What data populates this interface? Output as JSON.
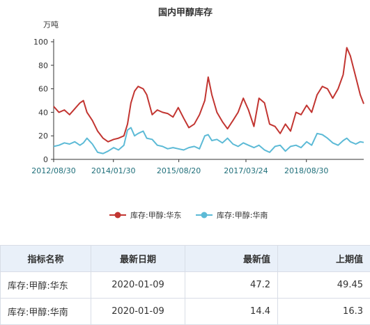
{
  "chart_data": {
    "type": "line",
    "title": "国内甲醇库存",
    "ylabel": "万吨",
    "ylim": [
      0,
      100
    ],
    "yticks": [
      0,
      20,
      40,
      60,
      80,
      100
    ],
    "x_start": "2012/08/30",
    "x_end": "2020/01/09",
    "xticks": [
      "2012/08/30",
      "2014/01/30",
      "2015/08/20",
      "2017/03/24",
      "2018/08/30"
    ],
    "grid": false,
    "legend_position": "bottom",
    "colors": {
      "east": "#c23531",
      "south": "#5cbad6"
    },
    "series": [
      {
        "name": "库存:甲醇:华东",
        "color": "#c23531",
        "points": [
          [
            "2012/08/30",
            45
          ],
          [
            "2012/10/15",
            40
          ],
          [
            "2012/12/01",
            42
          ],
          [
            "2013/01/15",
            38
          ],
          [
            "2013/03/01",
            43
          ],
          [
            "2013/04/15",
            48
          ],
          [
            "2013/05/15",
            50
          ],
          [
            "2013/06/15",
            40
          ],
          [
            "2013/08/01",
            33
          ],
          [
            "2013/09/15",
            24
          ],
          [
            "2013/11/01",
            18
          ],
          [
            "2013/12/15",
            15
          ],
          [
            "2014/02/01",
            17
          ],
          [
            "2014/03/15",
            18
          ],
          [
            "2014/05/01",
            20
          ],
          [
            "2014/06/01",
            30
          ],
          [
            "2014/07/01",
            48
          ],
          [
            "2014/08/01",
            58
          ],
          [
            "2014/09/01",
            62
          ],
          [
            "2014/10/15",
            60
          ],
          [
            "2014/11/15",
            55
          ],
          [
            "2015/01/01",
            38
          ],
          [
            "2015/02/15",
            42
          ],
          [
            "2015/04/01",
            40
          ],
          [
            "2015/05/15",
            39
          ],
          [
            "2015/07/01",
            36
          ],
          [
            "2015/08/15",
            44
          ],
          [
            "2015/10/01",
            35
          ],
          [
            "2015/11/15",
            27
          ],
          [
            "2016/01/01",
            30
          ],
          [
            "2016/02/15",
            38
          ],
          [
            "2016/04/01",
            50
          ],
          [
            "2016/05/01",
            70
          ],
          [
            "2016/06/01",
            55
          ],
          [
            "2016/07/15",
            40
          ],
          [
            "2016/09/01",
            32
          ],
          [
            "2016/10/15",
            26
          ],
          [
            "2016/12/01",
            33
          ],
          [
            "2017/01/15",
            40
          ],
          [
            "2017/03/01",
            52
          ],
          [
            "2017/04/15",
            42
          ],
          [
            "2017/06/01",
            28
          ],
          [
            "2017/07/15",
            52
          ],
          [
            "2017/09/01",
            48
          ],
          [
            "2017/10/15",
            30
          ],
          [
            "2017/12/01",
            28
          ],
          [
            "2018/01/15",
            22
          ],
          [
            "2018/03/01",
            30
          ],
          [
            "2018/04/15",
            24
          ],
          [
            "2018/06/01",
            40
          ],
          [
            "2018/07/15",
            38
          ],
          [
            "2018/09/01",
            46
          ],
          [
            "2018/10/15",
            40
          ],
          [
            "2018/12/01",
            55
          ],
          [
            "2019/01/15",
            62
          ],
          [
            "2019/03/01",
            60
          ],
          [
            "2019/04/15",
            52
          ],
          [
            "2019/06/01",
            60
          ],
          [
            "2019/07/15",
            72
          ],
          [
            "2019/08/15",
            95
          ],
          [
            "2019/09/15",
            88
          ],
          [
            "2019/11/01",
            70
          ],
          [
            "2019/12/10",
            55
          ],
          [
            "2020/01/09",
            47.2
          ]
        ]
      },
      {
        "name": "库存:甲醇:华南",
        "color": "#5cbad6",
        "points": [
          [
            "2012/08/30",
            11
          ],
          [
            "2012/10/15",
            12
          ],
          [
            "2012/12/01",
            14
          ],
          [
            "2013/01/15",
            13
          ],
          [
            "2013/03/01",
            15
          ],
          [
            "2013/04/15",
            12
          ],
          [
            "2013/05/15",
            14
          ],
          [
            "2013/06/15",
            18
          ],
          [
            "2013/08/01",
            13
          ],
          [
            "2013/09/15",
            6
          ],
          [
            "2013/11/01",
            5
          ],
          [
            "2013/12/15",
            7
          ],
          [
            "2014/02/01",
            10
          ],
          [
            "2014/03/15",
            8
          ],
          [
            "2014/05/01",
            12
          ],
          [
            "2014/06/01",
            25
          ],
          [
            "2014/07/01",
            27
          ],
          [
            "2014/08/01",
            20
          ],
          [
            "2014/09/01",
            22
          ],
          [
            "2014/10/15",
            24
          ],
          [
            "2014/11/15",
            18
          ],
          [
            "2015/01/01",
            17
          ],
          [
            "2015/02/15",
            12
          ],
          [
            "2015/04/01",
            11
          ],
          [
            "2015/05/15",
            9
          ],
          [
            "2015/07/01",
            10
          ],
          [
            "2015/08/15",
            9
          ],
          [
            "2015/10/01",
            8
          ],
          [
            "2015/11/15",
            10
          ],
          [
            "2016/01/01",
            11
          ],
          [
            "2016/02/15",
            9
          ],
          [
            "2016/04/01",
            20
          ],
          [
            "2016/05/01",
            21
          ],
          [
            "2016/06/01",
            16
          ],
          [
            "2016/07/15",
            17
          ],
          [
            "2016/09/01",
            14
          ],
          [
            "2016/10/15",
            18
          ],
          [
            "2016/12/01",
            13
          ],
          [
            "2017/01/15",
            11
          ],
          [
            "2017/03/01",
            14
          ],
          [
            "2017/04/15",
            12
          ],
          [
            "2017/06/01",
            10
          ],
          [
            "2017/07/15",
            12
          ],
          [
            "2017/09/01",
            8
          ],
          [
            "2017/10/15",
            6
          ],
          [
            "2017/12/01",
            11
          ],
          [
            "2018/01/15",
            12
          ],
          [
            "2018/03/01",
            7
          ],
          [
            "2018/04/15",
            11
          ],
          [
            "2018/06/01",
            12
          ],
          [
            "2018/07/15",
            10
          ],
          [
            "2018/09/01",
            15
          ],
          [
            "2018/10/15",
            12
          ],
          [
            "2018/12/01",
            22
          ],
          [
            "2019/01/15",
            21
          ],
          [
            "2019/03/01",
            18
          ],
          [
            "2019/04/15",
            14
          ],
          [
            "2019/06/01",
            12
          ],
          [
            "2019/07/15",
            16
          ],
          [
            "2019/08/15",
            18
          ],
          [
            "2019/09/15",
            15
          ],
          [
            "2019/11/01",
            13
          ],
          [
            "2019/12/10",
            15
          ],
          [
            "2020/01/09",
            14.4
          ]
        ]
      }
    ]
  },
  "table": {
    "headers": [
      "指标名称",
      "最新日期",
      "最新值",
      "上期值"
    ],
    "rows": [
      {
        "name": "库存:甲醇:华东",
        "date": "2020-01-09",
        "latest": "47.2",
        "previous": "49.45"
      },
      {
        "name": "库存:甲醇:华南",
        "date": "2020-01-09",
        "latest": "14.4",
        "previous": "16.3"
      }
    ]
  }
}
